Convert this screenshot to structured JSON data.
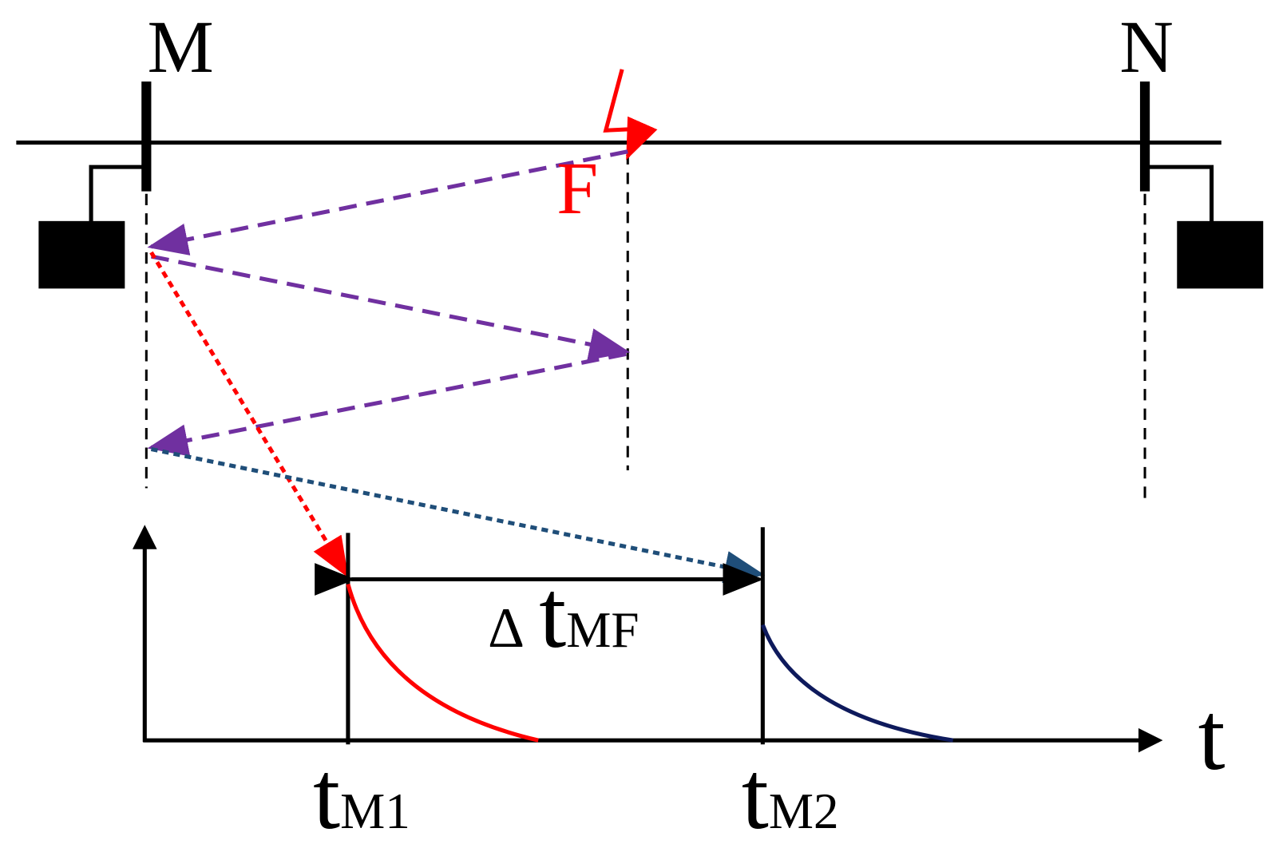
{
  "labels": {
    "bus_m": "M",
    "bus_n": "N",
    "fault": "F",
    "time_axis": "t",
    "t_m1": {
      "main": "t",
      "sub": "M1"
    },
    "t_m2": {
      "main": "t",
      "sub": "M2"
    },
    "delta_t_mf": {
      "symbol": "Δ",
      "main": "t",
      "sub": "MF"
    }
  }
}
